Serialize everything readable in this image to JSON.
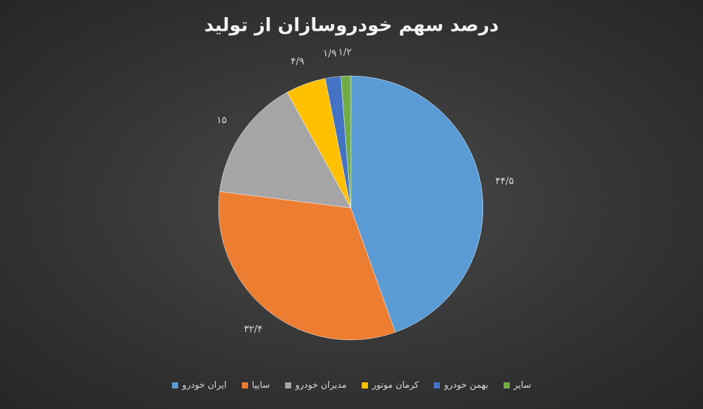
{
  "chart_data": {
    "type": "pie",
    "title": "درصد سهم خودروسازان از تولید",
    "categories": [
      "ایران خودرو",
      "سایپا",
      "مدیران خودرو",
      "کرمان موتور",
      "بهمن خودرو",
      "سایر"
    ],
    "values": [
      44.5,
      32.4,
      15,
      4.9,
      1.9,
      1.2
    ],
    "value_labels": [
      "۴۴/۵",
      "۳۲/۴",
      "۱۵",
      "۴/۹",
      "۱/۹",
      "۱/۲"
    ],
    "colors": [
      "#5b9bd5",
      "#ed7d31",
      "#a5a5a5",
      "#ffc000",
      "#4472c4",
      "#70ad47"
    ],
    "legend": "bottom"
  }
}
